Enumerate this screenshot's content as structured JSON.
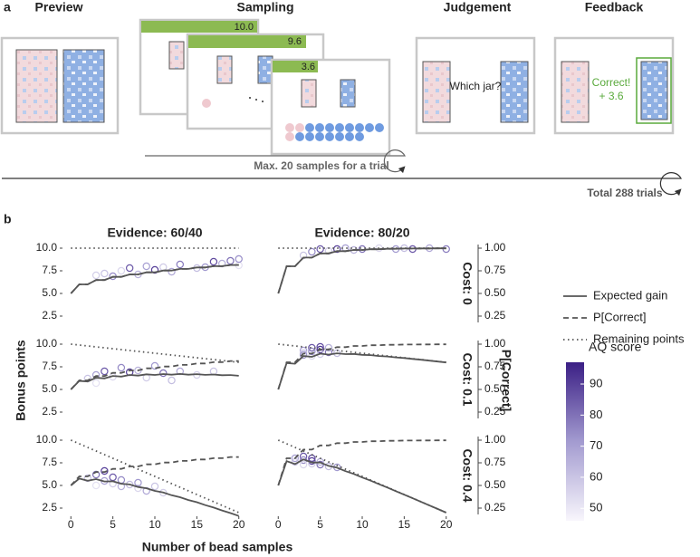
{
  "panel_a": {
    "label": "a",
    "stages": [
      "Preview",
      "Sampling",
      "Judgement",
      "Feedback"
    ],
    "sampling_counters": [
      "10.0",
      "9.6",
      "3.6"
    ],
    "judgement_prompt": "Which jar?",
    "feedback": {
      "result": "Correct!",
      "bonus": "+ 3.6"
    },
    "trial_limit": "Max. 20 samples for a trial",
    "total_trials": "Total 288 trials"
  },
  "panel_b": {
    "label": "b"
  },
  "chart_data": {
    "type": "line",
    "columns": [
      "Evidence: 60/40",
      "Evidence: 80/20"
    ],
    "rows": [
      "Cost: 0",
      "Cost: 0.1",
      "Cost: 0.4"
    ],
    "xlabel": "Number of bead samples",
    "ylabel": "Bonus points",
    "y2label": "P[Correct]",
    "xlim": [
      -1,
      21
    ],
    "xticks": [
      0,
      5,
      10,
      15,
      20
    ],
    "ylim": [
      1.6,
      10.6
    ],
    "yticks": [
      2.5,
      {
        "value": 5,
        "label": "5.0"
      },
      7.5,
      {
        "value": 10,
        "label": "10.0"
      }
    ],
    "y2lim": [
      0.16,
      1.06
    ],
    "y2ticks": [
      0.25,
      {
        "value": 0.5,
        "label": "0.50"
      },
      0.75,
      {
        "value": 1,
        "label": "1.00"
      }
    ],
    "legend": "right",
    "series": [
      {
        "name": "Expected gain",
        "color": "#555555",
        "dash": "solid"
      },
      {
        "name": "P[Correct]",
        "color": "#555555",
        "dash": "dashed",
        "axis": "y2"
      },
      {
        "name": "Remaining points",
        "color": "#555555",
        "dash": "dotted"
      }
    ],
    "colorbar": {
      "title": "AQ score",
      "lim": [
        46,
        97
      ],
      "ticks": [
        50,
        60,
        70,
        80,
        90
      ],
      "colors": [
        "#f8f6fc",
        "#a39bd0",
        "#3b1f85"
      ]
    },
    "x": [
      0,
      1,
      2,
      3,
      4,
      5,
      6,
      7,
      8,
      9,
      10,
      11,
      12,
      13,
      14,
      15,
      16,
      17,
      18,
      19,
      20
    ],
    "facets": [
      {
        "lines": [
          {
            "values": [
              5,
              6,
              6,
              6.48,
              6.48,
              6.83,
              6.83,
              7.1,
              7.1,
              7.33,
              7.33,
              7.53,
              7.53,
              7.71,
              7.71,
              7.87,
              7.87,
              8.01,
              8.01,
              8.14,
              8.14
            ]
          },
          {
            "values": [
              0.5,
              0.6,
              0.6,
              0.648,
              0.648,
              0.683,
              0.683,
              0.71,
              0.71,
              0.733,
              0.733,
              0.753,
              0.753,
              0.771,
              0.771,
              0.787,
              0.787,
              0.801,
              0.801,
              0.814,
              0.814
            ]
          },
          {
            "x": [
              0,
              20
            ],
            "values": [
              10,
              10
            ]
          }
        ],
        "points": {
          "x": [
            3,
            4,
            5,
            6,
            7,
            8,
            9,
            10,
            11,
            12,
            13,
            15,
            16,
            17,
            18,
            19,
            20,
            20
          ],
          "y": [
            7.0,
            7.2,
            6.9,
            7.5,
            7.8,
            7.1,
            8.0,
            7.6,
            7.9,
            7.4,
            8.2,
            7.8,
            7.9,
            8.5,
            8.3,
            8.6,
            8.1,
            8.8
          ],
          "aq": [
            57,
            60,
            75,
            55,
            85,
            65,
            70,
            90,
            58,
            68,
            78,
            62,
            72,
            88,
            66,
            80,
            52,
            74
          ]
        }
      },
      {
        "lines": [
          {
            "values": [
              5,
              8,
              8,
              8.96,
              8.96,
              9.42,
              9.42,
              9.67,
              9.67,
              9.8,
              9.8,
              9.88,
              9.88,
              9.93,
              9.93,
              9.96,
              9.96,
              9.97,
              9.97,
              9.98,
              9.98
            ]
          },
          {
            "values": [
              0.5,
              0.8,
              0.8,
              0.896,
              0.896,
              0.942,
              0.942,
              0.967,
              0.967,
              0.98,
              0.98,
              0.988,
              0.988,
              0.993,
              0.993,
              0.996,
              0.996,
              0.997,
              0.997,
              0.998,
              0.998
            ]
          },
          {
            "x": [
              0,
              20
            ],
            "values": [
              10,
              10
            ]
          }
        ],
        "points": {
          "x": [
            3,
            4,
            5,
            6,
            7,
            8,
            9,
            10,
            12,
            14,
            15,
            16,
            18,
            20
          ],
          "y": [
            9.2,
            9.6,
            9.9,
            9.7,
            9.9,
            10.0,
            9.8,
            9.9,
            10.0,
            9.9,
            10.0,
            9.9,
            10.0,
            9.9
          ],
          "aq": [
            60,
            75,
            85,
            58,
            90,
            70,
            65,
            80,
            55,
            72,
            62,
            86,
            68,
            78
          ]
        }
      },
      {
        "lines": [
          {
            "values": [
              5,
              5.94,
              5.88,
              6.29,
              6.22,
              6.49,
              6.42,
              6.6,
              6.53,
              6.67,
              6.6,
              6.7,
              6.63,
              6.71,
              6.63,
              6.69,
              6.61,
              6.65,
              6.57,
              6.59,
              6.51
            ]
          },
          {
            "values": [
              0.5,
              0.6,
              0.6,
              0.648,
              0.648,
              0.683,
              0.683,
              0.71,
              0.71,
              0.733,
              0.733,
              0.753,
              0.753,
              0.771,
              0.771,
              0.787,
              0.787,
              0.801,
              0.801,
              0.814,
              0.814
            ]
          },
          {
            "x": [
              0,
              20
            ],
            "values": [
              10,
              8
            ]
          }
        ],
        "points": {
          "x": [
            2,
            3,
            3,
            4,
            5,
            6,
            7,
            8,
            9,
            10,
            11,
            12,
            13,
            15,
            17
          ],
          "y": [
            6.2,
            6.6,
            5.7,
            7.0,
            6.4,
            7.4,
            6.9,
            7.1,
            6.3,
            7.6,
            6.8,
            6.0,
            7.0,
            6.6,
            7.0
          ],
          "aq": [
            60,
            70,
            52,
            85,
            55,
            75,
            90,
            65,
            58,
            72,
            80,
            62,
            68,
            57,
            60
          ]
        }
      },
      {
        "lines": [
          {
            "values": [
              5,
              7.92,
              7.84,
              8.69,
              8.6,
              8.95,
              8.85,
              8.99,
              8.9,
              8.92,
              8.82,
              8.79,
              8.69,
              8.64,
              8.54,
              8.47,
              8.37,
              8.28,
              8.18,
              8.08,
              7.98
            ]
          },
          {
            "values": [
              0.5,
              0.8,
              0.8,
              0.896,
              0.896,
              0.942,
              0.942,
              0.967,
              0.967,
              0.98,
              0.98,
              0.988,
              0.988,
              0.993,
              0.993,
              0.996,
              0.996,
              0.997,
              0.997,
              0.998,
              0.998
            ]
          },
          {
            "x": [
              0,
              20
            ],
            "values": [
              10,
              8
            ]
          }
        ],
        "points": {
          "x": [
            3,
            3,
            3,
            4,
            4,
            4,
            5,
            5,
            5,
            6,
            6,
            7
          ],
          "y": [
            9.3,
            9.0,
            8.8,
            9.6,
            9.2,
            8.7,
            9.4,
            8.9,
            9.7,
            9.1,
            9.6,
            9.0
          ],
          "aq": [
            70,
            60,
            72,
            85,
            75,
            55,
            92,
            58,
            88,
            80,
            66,
            62
          ]
        }
      },
      {
        "lines": [
          {
            "values": [
              5,
              5.76,
              5.52,
              5.7,
              5.44,
              5.46,
              5.19,
              5.11,
              4.83,
              4.69,
              4.4,
              4.22,
              3.92,
              3.7,
              3.39,
              3.15,
              2.83,
              2.56,
              2.24,
              1.95,
              1.63
            ]
          },
          {
            "values": [
              0.5,
              0.6,
              0.6,
              0.648,
              0.648,
              0.683,
              0.683,
              0.71,
              0.71,
              0.733,
              0.733,
              0.753,
              0.753,
              0.771,
              0.771,
              0.787,
              0.787,
              0.801,
              0.801,
              0.814,
              0.814
            ]
          },
          {
            "x": [
              0,
              20
            ],
            "values": [
              10,
              2
            ]
          }
        ],
        "points": {
          "x": [
            2,
            3,
            3,
            4,
            4,
            5,
            5,
            6,
            6,
            7,
            8,
            8,
            9,
            10,
            11
          ],
          "y": [
            5.8,
            6.2,
            5.0,
            5.5,
            6.6,
            5.2,
            5.9,
            4.9,
            5.6,
            5.1,
            4.7,
            5.3,
            4.4,
            4.9,
            4.2
          ],
          "aq": [
            60,
            80,
            52,
            70,
            90,
            58,
            85,
            65,
            75,
            62,
            55,
            72,
            68,
            60,
            57
          ]
        }
      },
      {
        "lines": [
          {
            "values": [
              5,
              7.68,
              7.36,
              7.88,
              7.53,
              7.54,
              7.16,
              6.96,
              6.58,
              6.27,
              5.88,
              5.53,
              5.14,
              4.77,
              4.37,
              3.98,
              3.59,
              3.19,
              2.79,
              2.4,
              2.0
            ]
          },
          {
            "values": [
              0.5,
              0.8,
              0.8,
              0.896,
              0.896,
              0.942,
              0.942,
              0.967,
              0.967,
              0.98,
              0.98,
              0.988,
              0.988,
              0.993,
              0.993,
              0.996,
              0.996,
              0.997,
              0.997,
              0.998,
              0.998
            ]
          },
          {
            "x": [
              0,
              20
            ],
            "values": [
              10,
              2
            ]
          }
        ],
        "points": {
          "x": [
            2,
            2,
            3,
            3,
            3,
            4,
            4,
            4,
            5,
            5,
            6,
            7
          ],
          "y": [
            8.0,
            7.6,
            8.2,
            7.8,
            7.3,
            7.7,
            7.4,
            8.0,
            7.3,
            7.6,
            7.1,
            7.0
          ],
          "aq": [
            70,
            60,
            85,
            75,
            55,
            90,
            58,
            88,
            80,
            66,
            62,
            72
          ]
        }
      }
    ]
  }
}
